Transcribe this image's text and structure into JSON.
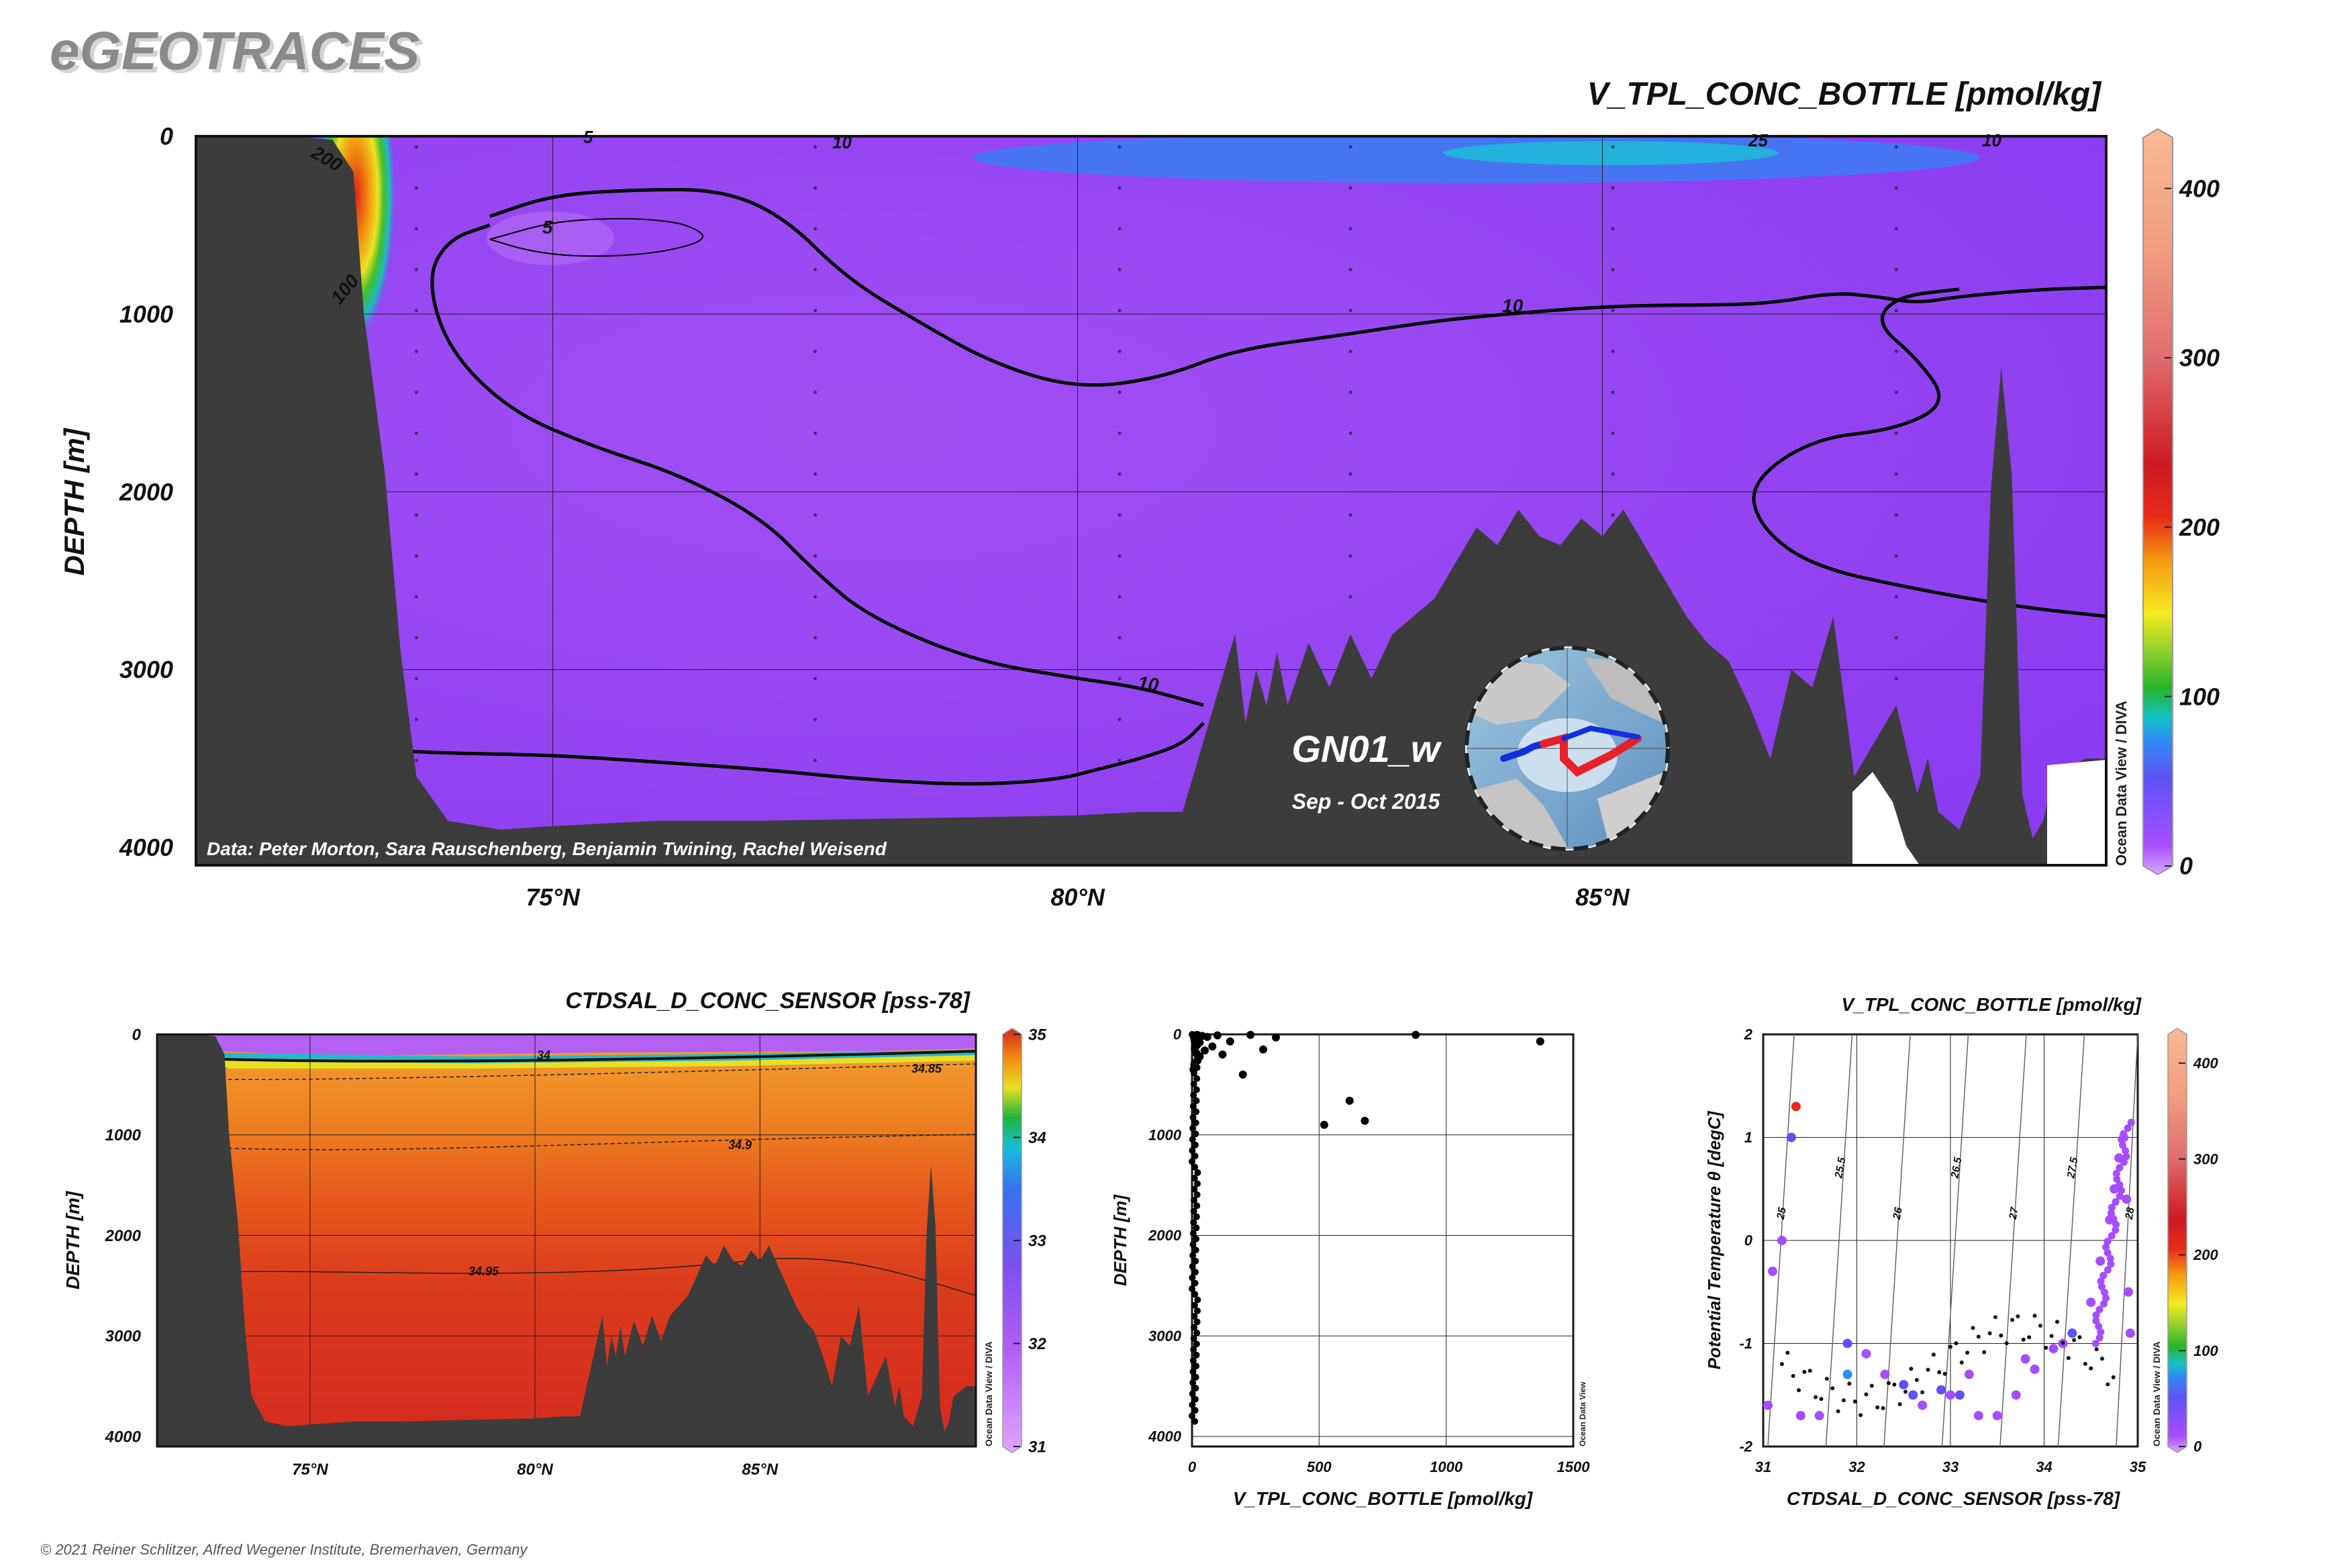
{
  "brand": "eGEOTRACES",
  "copyright": "© 2021 Reiner Schlitzer, Alfred Wegener Institute, Bremerhaven, Germany",
  "colors": {
    "terrain": "#3c3c3c",
    "background_vtpl": "#8a3cf0",
    "background_sal": "#d8261c",
    "scatter_point": "#000000"
  },
  "chart_data": [
    {
      "id": "main_section",
      "type": "heatmap",
      "title": "V_TPL_CONC_BOTTLE [pmol/kg]",
      "xlabel": "",
      "ylabel": "DEPTH [m]",
      "x_unit": "°N",
      "xlim": [
        71.6,
        89.8
      ],
      "ylim": [
        4100,
        0
      ],
      "x_tick_labels": [
        "75°N",
        "80°N",
        "85°N"
      ],
      "x_ticks": [
        75,
        80,
        85
      ],
      "y_tick_labels": [
        "0",
        "1000",
        "2000",
        "3000",
        "4000"
      ],
      "y_ticks": [
        0,
        1000,
        2000,
        3000,
        4000
      ],
      "grid": true,
      "colorbar": {
        "min": 0,
        "max": 430,
        "tick_labels": [
          "0",
          "100",
          "200",
          "300",
          "400"
        ],
        "ticks": [
          0,
          100,
          200,
          300,
          400
        ],
        "scale": "rainbow"
      },
      "contour_labels": [
        "200",
        "100",
        "5",
        "10",
        "10",
        "10",
        "25",
        "10",
        "5"
      ],
      "credit": "Data: Peter Morton, Sara Rauschenberg, Benjamin Twining, Rachel Weisend",
      "watermark": "Ocean Data View / DIVA",
      "section_name": "GN01_w",
      "cruise_period": "Sep - Oct 2015",
      "bathymetry": {
        "x": [
          71.6,
          72.5,
          72.9,
          73.1,
          73.2,
          73.4,
          73.55,
          73.7,
          74.0,
          74.5,
          75.0,
          76.0,
          77.0,
          78.0,
          79.0,
          80.0,
          80.6,
          81.0,
          81.3,
          81.4,
          81.5,
          81.6,
          81.7,
          81.8,
          81.9,
          82.0,
          82.2,
          82.4,
          82.6,
          82.8,
          83.0,
          83.2,
          83.4,
          83.6,
          83.8,
          84.0,
          84.2,
          84.4,
          84.6,
          84.8,
          85.0,
          85.2,
          85.4,
          85.6,
          85.8,
          86.0,
          86.2,
          86.4,
          86.6,
          86.8,
          87.0,
          87.2,
          87.4,
          87.6,
          87.8,
          88.0,
          88.1,
          88.2,
          88.3,
          88.4,
          88.6,
          88.7,
          88.8,
          88.9,
          89.0,
          89.1,
          89.2,
          89.3,
          89.45,
          89.6,
          89.8
        ],
        "depth": [
          0,
          0,
          20,
          200,
          1000,
          1900,
          2900,
          3600,
          3850,
          3900,
          3880,
          3850,
          3850,
          3840,
          3830,
          3820,
          3800,
          3800,
          3200,
          3000,
          2800,
          3300,
          3000,
          3200,
          2900,
          3200,
          2850,
          3100,
          2800,
          3050,
          2800,
          2700,
          2600,
          2400,
          2200,
          2300,
          2100,
          2250,
          2300,
          2150,
          2250,
          2100,
          2300,
          2500,
          2700,
          2850,
          2950,
          3200,
          3500,
          3000,
          3100,
          2700,
          3600,
          3400,
          3200,
          3700,
          3500,
          3800,
          3850,
          3900,
          3600,
          2000,
          1300,
          1900,
          3700,
          3950,
          3850,
          3600,
          3550,
          3500,
          3500
        ]
      },
      "isolines": [
        {
          "value": 10,
          "x": [
            73.3,
            74.0,
            75.0,
            76.0,
            77.0,
            78.0,
            79.0,
            79.8,
            80.2,
            80.6,
            81.0,
            81.2
          ],
          "depth": [
            3450,
            3470,
            3480,
            3520,
            3560,
            3620,
            3650,
            3620,
            3560,
            3500,
            3420,
            3300
          ]
        },
        {
          "value": 10,
          "x": [
            74.4,
            74.0,
            73.8,
            74.0,
            74.6,
            75.4,
            76.2,
            77.0,
            77.5,
            78.0,
            79.0,
            80.0,
            80.6,
            81.2
          ],
          "depth": [
            500,
            580,
            800,
            1200,
            1550,
            1750,
            1900,
            2150,
            2450,
            2700,
            2950,
            3050,
            3100,
            3200
          ]
        },
        {
          "value": 10,
          "x": [
            74.4,
            75.0,
            75.8,
            76.6,
            77.2,
            77.8,
            78.5,
            79.2,
            80.0,
            80.8,
            81.5,
            82.5,
            83.5,
            84.5,
            85.0,
            85.5,
            86.0,
            86.6,
            87.2,
            87.6,
            88.0,
            88.4,
            89.2,
            89.8
          ],
          "depth": [
            450,
            330,
            300,
            300,
            450,
            800,
            1050,
            1280,
            1420,
            1360,
            1200,
            1120,
            1030,
            980,
            960,
            950,
            950,
            940,
            880,
            900,
            940,
            900,
            860,
            850
          ]
        },
        {
          "value": 10,
          "x": [
            88.4,
            87.8,
            87.6,
            88.0,
            88.3,
            87.8,
            87.0,
            86.4,
            86.5,
            87.0,
            88.0,
            89.0,
            89.8
          ],
          "depth": [
            860,
            900,
            1050,
            1250,
            1500,
            1650,
            1700,
            1950,
            2200,
            2420,
            2550,
            2650,
            2700
          ]
        },
        {
          "value": 5,
          "x": [
            74.4,
            75.0,
            75.6,
            76.0,
            76.3,
            76.5,
            76.0,
            75.3,
            74.8,
            74.4
          ],
          "depth": [
            580,
            480,
            460,
            470,
            500,
            580,
            660,
            680,
            650,
            580
          ]
        }
      ]
    },
    {
      "id": "salinity_section",
      "type": "heatmap",
      "title": "CTDSAL_D_CONC_SENSOR [pss-78]",
      "xlabel": "",
      "ylabel": "DEPTH [m]",
      "x_unit": "°N",
      "xlim": [
        71.6,
        89.8
      ],
      "ylim": [
        4100,
        0
      ],
      "x_tick_labels": [
        "75°N",
        "80°N",
        "85°N"
      ],
      "x_ticks": [
        75,
        80,
        85
      ],
      "y_tick_labels": [
        "0",
        "1000",
        "2000",
        "3000",
        "4000"
      ],
      "y_ticks": [
        0,
        1000,
        2000,
        3000,
        4000
      ],
      "grid": true,
      "colorbar": {
        "min": 31,
        "max": 35,
        "tick_labels": [
          "31",
          "32",
          "33",
          "34",
          "35"
        ],
        "ticks": [
          31,
          32,
          33,
          34,
          35
        ],
        "scale": "rainbow"
      },
      "contour_labels": [
        "34",
        "34.85",
        "34.9",
        "34.95"
      ],
      "watermark": "Ocean Data View / DIVA"
    },
    {
      "id": "depth_scatter",
      "type": "scatter",
      "title": "",
      "xlabel": "V_TPL_CONC_BOTTLE [pmol/kg]",
      "ylabel": "DEPTH [m]",
      "xlim": [
        0,
        1500
      ],
      "ylim": [
        4100,
        0
      ],
      "x_tick_labels": [
        "0",
        "500",
        "1000",
        "1500"
      ],
      "x_ticks": [
        0,
        500,
        1000,
        1500
      ],
      "y_tick_labels": [
        "0",
        "1000",
        "2000",
        "3000",
        "4000"
      ],
      "y_ticks": [
        0,
        1000,
        2000,
        3000,
        4000
      ],
      "grid": true,
      "watermark": "Ocean Data View",
      "series": [
        {
          "x": [
            5,
            8,
            10,
            12,
            15,
            20,
            25,
            30,
            40,
            60,
            80,
            100,
            150,
            230,
            280,
            330,
            880,
            1370,
            620,
            680,
            520,
            200,
            120,
            30,
            50,
            18,
            22,
            9,
            6,
            11
          ],
          "y": [
            10,
            30,
            60,
            100,
            20,
            5,
            40,
            80,
            15,
            25,
            120,
            10,
            70,
            5,
            150,
            30,
            5,
            70,
            660,
            860,
            900,
            400,
            200,
            220,
            160,
            190,
            260,
            300,
            350,
            140
          ]
        }
      ]
    },
    {
      "id": "ts_scatter",
      "type": "scatter",
      "title": "V_TPL_CONC_BOTTLE [pmol/kg]",
      "xlabel": "CTDSAL_D_CONC_SENSOR [pss-78]",
      "ylabel": "Potential Temperature θ [degC]",
      "xlim": [
        31,
        35
      ],
      "ylim": [
        -2,
        2
      ],
      "x_tick_labels": [
        "31",
        "32",
        "33",
        "34",
        "35"
      ],
      "x_ticks": [
        31,
        32,
        33,
        34,
        35
      ],
      "y_tick_labels": [
        "-2",
        "-1",
        "0",
        "1",
        "2"
      ],
      "y_ticks": [
        -2,
        -1,
        0,
        1,
        2
      ],
      "grid": true,
      "colorbar": {
        "min": 0,
        "max": 430,
        "tick_labels": [
          "0",
          "100",
          "200",
          "300",
          "400"
        ],
        "ticks": [
          0,
          100,
          200,
          300,
          400
        ],
        "scale": "rainbow"
      },
      "isopycnal_labels": [
        "25",
        "25.5",
        "26",
        "26.5",
        "27",
        "27.5",
        "28"
      ],
      "watermark": "Ocean Data View / DIVA",
      "series": [
        {
          "x": [
            31.1,
            31.3,
            31.35,
            31.2,
            31.05,
            31.6,
            31.9,
            32.1,
            32.3,
            32.5,
            32.7,
            32.9,
            33.0,
            33.1,
            33.3,
            33.5,
            33.7,
            33.9,
            34.1,
            34.3,
            34.5,
            34.6,
            34.7,
            34.75,
            34.8,
            34.85,
            34.88,
            34.9,
            34.92,
            31.9,
            31.4,
            32.6,
            33.2,
            33.8,
            34.2
          ],
          "y": [
            -0.3,
            1.0,
            1.3,
            0.0,
            -1.6,
            -1.7,
            -1.0,
            -1.1,
            -1.3,
            -1.4,
            -1.6,
            -1.45,
            -1.5,
            -1.5,
            -1.7,
            -1.7,
            -1.5,
            -1.25,
            -1.05,
            -0.9,
            -0.6,
            -0.2,
            0.2,
            0.5,
            0.8,
            1.0,
            0.4,
            -0.5,
            -0.9,
            -1.3,
            -1.7,
            -1.5,
            -1.3,
            -1.15,
            -1.0
          ],
          "value": [
            20,
            45,
            250,
            10,
            15,
            20,
            30,
            10,
            15,
            40,
            25,
            60,
            12,
            30,
            15,
            20,
            12,
            25,
            10,
            30,
            15,
            10,
            12,
            15,
            20,
            10,
            12,
            15,
            18,
            90,
            25,
            35,
            20,
            15,
            10
          ]
        }
      ]
    }
  ]
}
